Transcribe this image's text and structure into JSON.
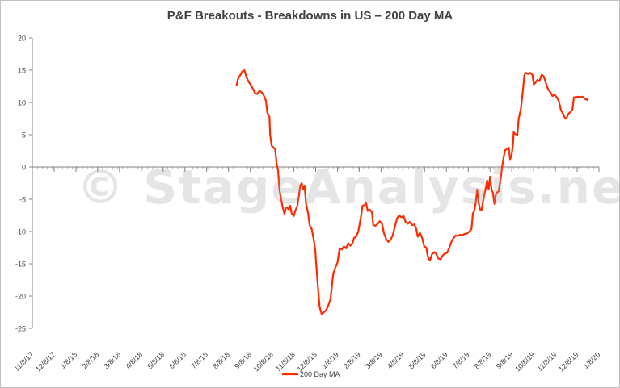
{
  "chart_data": {
    "type": "line",
    "title": "P&F Breakouts - Breakdowns in US – 200 Day MA",
    "watermark": "© StageAnalysis.net",
    "xlabel": "",
    "ylabel": "",
    "ylim": [
      -25,
      20
    ],
    "yticks": [
      20,
      15,
      10,
      5,
      0,
      -5,
      -10,
      -15,
      -20,
      -25
    ],
    "x_range": [
      "2017-11-08",
      "2020-01-08"
    ],
    "x_tick_labels": [
      "11/8/17",
      "12/8/17",
      "1/8/18",
      "2/8/18",
      "3/8/18",
      "4/8/18",
      "5/8/18",
      "6/8/18",
      "7/8/18",
      "8/8/18",
      "9/8/18",
      "10/8/18",
      "11/8/18",
      "12/8/18",
      "1/8/19",
      "2/8/19",
      "3/8/19",
      "4/8/19",
      "5/8/19",
      "6/8/19",
      "7/8/19",
      "8/8/19",
      "9/8/19",
      "10/8/19",
      "11/8/19",
      "12/8/19",
      "1/8/20"
    ],
    "legend_position": "bottom",
    "colors": {
      "series": "#ff2a00",
      "axis": "#808080",
      "text": "#404040"
    },
    "series": [
      {
        "name": "200 Day MA",
        "points": [
          [
            "2018-08-20",
            12.6
          ],
          [
            "2018-08-22",
            13.6
          ],
          [
            "2018-08-25",
            14.2
          ],
          [
            "2018-08-28",
            14.8
          ],
          [
            "2018-08-31",
            15.0
          ],
          [
            "2018-09-03",
            13.9
          ],
          [
            "2018-09-06",
            13.2
          ],
          [
            "2018-09-09",
            12.7
          ],
          [
            "2018-09-12",
            12.1
          ],
          [
            "2018-09-15",
            11.4
          ],
          [
            "2018-09-18",
            11.3
          ],
          [
            "2018-09-21",
            11.8
          ],
          [
            "2018-09-24",
            11.6
          ],
          [
            "2018-09-27",
            11.1
          ],
          [
            "2018-09-30",
            10.3
          ],
          [
            "2018-10-02",
            8.4
          ],
          [
            "2018-10-05",
            7.8
          ],
          [
            "2018-10-06",
            5.0
          ],
          [
            "2018-10-08",
            3.3
          ],
          [
            "2018-10-11",
            3.0
          ],
          [
            "2018-10-13",
            2.7
          ],
          [
            "2018-10-15",
            0.5
          ],
          [
            "2018-10-17",
            -0.5
          ],
          [
            "2018-10-19",
            -3.5
          ],
          [
            "2018-10-21",
            -4.8
          ],
          [
            "2018-10-23",
            -6.0
          ],
          [
            "2018-10-26",
            -7.3
          ],
          [
            "2018-10-28",
            -6.3
          ],
          [
            "2018-10-30",
            -6.3
          ],
          [
            "2018-11-01",
            -6.6
          ],
          [
            "2018-11-03",
            -6.0
          ],
          [
            "2018-11-05",
            -7.2
          ],
          [
            "2018-11-08",
            -7.6
          ],
          [
            "2018-11-10",
            -6.8
          ],
          [
            "2018-11-13",
            -6.0
          ],
          [
            "2018-11-15",
            -4.5
          ],
          [
            "2018-11-17",
            -2.9
          ],
          [
            "2018-11-19",
            -2.5
          ],
          [
            "2018-11-21",
            -3.5
          ],
          [
            "2018-11-23",
            -2.9
          ],
          [
            "2018-11-25",
            -5.6
          ],
          [
            "2018-11-28",
            -7.2
          ],
          [
            "2018-11-30",
            -9.0
          ],
          [
            "2018-12-03",
            -9.6
          ],
          [
            "2018-12-06",
            -11.4
          ],
          [
            "2018-12-08",
            -13.0
          ],
          [
            "2018-12-10",
            -16.2
          ],
          [
            "2018-12-12",
            -19.0
          ],
          [
            "2018-12-14",
            -21.7
          ],
          [
            "2018-12-17",
            -22.8
          ],
          [
            "2018-12-20",
            -22.5
          ],
          [
            "2018-12-23",
            -22.2
          ],
          [
            "2018-12-26",
            -21.5
          ],
          [
            "2018-12-29",
            -20.6
          ],
          [
            "2018-12-31",
            -18.7
          ],
          [
            "2019-01-02",
            -16.6
          ],
          [
            "2019-01-05",
            -15.6
          ],
          [
            "2019-01-08",
            -14.8
          ],
          [
            "2019-01-11",
            -12.6
          ],
          [
            "2019-01-14",
            -12.8
          ],
          [
            "2019-01-17",
            -12.3
          ],
          [
            "2019-01-20",
            -12.6
          ],
          [
            "2019-01-23",
            -11.8
          ],
          [
            "2019-01-26",
            -12.2
          ],
          [
            "2019-01-29",
            -11.8
          ],
          [
            "2019-01-31",
            -11.0
          ],
          [
            "2019-02-03",
            -10.8
          ],
          [
            "2019-02-06",
            -10.0
          ],
          [
            "2019-02-08",
            -8.8
          ],
          [
            "2019-02-10",
            -7.5
          ],
          [
            "2019-02-12",
            -6.0
          ],
          [
            "2019-02-15",
            -5.9
          ],
          [
            "2019-02-17",
            -5.6
          ],
          [
            "2019-02-19",
            -6.8
          ],
          [
            "2019-02-22",
            -6.6
          ],
          [
            "2019-02-25",
            -7.0
          ],
          [
            "2019-02-27",
            -9.0
          ],
          [
            "2019-03-02",
            -9.1
          ],
          [
            "2019-03-05",
            -8.8
          ],
          [
            "2019-03-08",
            -8.4
          ],
          [
            "2019-03-11",
            -8.8
          ],
          [
            "2019-03-14",
            -10.3
          ],
          [
            "2019-03-17",
            -11.2
          ],
          [
            "2019-03-20",
            -11.6
          ],
          [
            "2019-03-23",
            -11.3
          ],
          [
            "2019-03-26",
            -10.6
          ],
          [
            "2019-03-29",
            -9.3
          ],
          [
            "2019-04-01",
            -8.0
          ],
          [
            "2019-04-04",
            -7.5
          ],
          [
            "2019-04-07",
            -7.8
          ],
          [
            "2019-04-10",
            -7.6
          ],
          [
            "2019-04-13",
            -8.5
          ],
          [
            "2019-04-16",
            -8.8
          ],
          [
            "2019-04-19",
            -8.5
          ],
          [
            "2019-04-22",
            -9.0
          ],
          [
            "2019-04-25",
            -8.9
          ],
          [
            "2019-04-28",
            -9.6
          ],
          [
            "2019-04-30",
            -10.8
          ],
          [
            "2019-05-03",
            -10.2
          ],
          [
            "2019-05-06",
            -10.9
          ],
          [
            "2019-05-09",
            -12.3
          ],
          [
            "2019-05-12",
            -12.5
          ],
          [
            "2019-05-14",
            -13.8
          ],
          [
            "2019-05-17",
            -14.5
          ],
          [
            "2019-05-20",
            -13.5
          ],
          [
            "2019-05-23",
            -13.2
          ],
          [
            "2019-05-26",
            -13.5
          ],
          [
            "2019-05-29",
            -14.2
          ],
          [
            "2019-06-01",
            -14.3
          ],
          [
            "2019-06-04",
            -13.7
          ],
          [
            "2019-06-07",
            -13.4
          ],
          [
            "2019-06-10",
            -13.3
          ],
          [
            "2019-06-13",
            -12.5
          ],
          [
            "2019-06-16",
            -11.6
          ],
          [
            "2019-06-19",
            -11.0
          ],
          [
            "2019-06-22",
            -10.6
          ],
          [
            "2019-06-25",
            -10.7
          ],
          [
            "2019-06-28",
            -10.5
          ],
          [
            "2019-07-01",
            -10.6
          ],
          [
            "2019-07-04",
            -10.4
          ],
          [
            "2019-07-08",
            -10.3
          ],
          [
            "2019-07-11",
            -10.0
          ],
          [
            "2019-07-14",
            -9.6
          ],
          [
            "2019-07-16",
            -7.2
          ],
          [
            "2019-07-18",
            -6.8
          ],
          [
            "2019-07-20",
            -5.5
          ],
          [
            "2019-07-22",
            -3.5
          ],
          [
            "2019-07-24",
            -5.5
          ],
          [
            "2019-07-26",
            -6.6
          ],
          [
            "2019-07-28",
            -6.7
          ],
          [
            "2019-07-31",
            -4.8
          ],
          [
            "2019-08-03",
            -3.2
          ],
          [
            "2019-08-05",
            -2.1
          ],
          [
            "2019-08-07",
            -3.5
          ],
          [
            "2019-08-09",
            -1.5
          ],
          [
            "2019-08-11",
            -3.5
          ],
          [
            "2019-08-13",
            -4.0
          ],
          [
            "2019-08-15",
            -5.7
          ],
          [
            "2019-08-17",
            -4.3
          ],
          [
            "2019-08-19",
            -3.9
          ],
          [
            "2019-08-21",
            -3.8
          ],
          [
            "2019-08-24",
            -1.6
          ],
          [
            "2019-08-26",
            0.2
          ],
          [
            "2019-08-28",
            1.5
          ],
          [
            "2019-08-30",
            2.6
          ],
          [
            "2019-09-02",
            2.8
          ],
          [
            "2019-09-04",
            3.0
          ],
          [
            "2019-09-06",
            1.2
          ],
          [
            "2019-09-08",
            1.8
          ],
          [
            "2019-09-10",
            3.6
          ],
          [
            "2019-09-11",
            5.4
          ],
          [
            "2019-09-13",
            5.1
          ],
          [
            "2019-09-16",
            5.0
          ],
          [
            "2019-09-18",
            7.5
          ],
          [
            "2019-09-21",
            9.0
          ],
          [
            "2019-09-23",
            11.0
          ],
          [
            "2019-09-26",
            14.3
          ],
          [
            "2019-09-28",
            14.6
          ],
          [
            "2019-10-01",
            14.4
          ],
          [
            "2019-10-04",
            14.6
          ],
          [
            "2019-10-07",
            14.3
          ],
          [
            "2019-10-09",
            12.8
          ],
          [
            "2019-10-11",
            13.0
          ],
          [
            "2019-10-14",
            13.5
          ],
          [
            "2019-10-17",
            13.3
          ],
          [
            "2019-10-20",
            14.3
          ],
          [
            "2019-10-23",
            14.0
          ],
          [
            "2019-10-26",
            13.0
          ],
          [
            "2019-10-29",
            12.0
          ],
          [
            "2019-11-01",
            11.6
          ],
          [
            "2019-11-04",
            11.0
          ],
          [
            "2019-11-07",
            11.2
          ],
          [
            "2019-11-10",
            10.8
          ],
          [
            "2019-11-13",
            10.2
          ],
          [
            "2019-11-16",
            8.8
          ],
          [
            "2019-11-19",
            8.2
          ],
          [
            "2019-11-22",
            7.5
          ],
          [
            "2019-11-24",
            7.6
          ],
          [
            "2019-11-26",
            8.2
          ],
          [
            "2019-11-29",
            8.5
          ],
          [
            "2019-12-02",
            8.9
          ],
          [
            "2019-12-04",
            10.8
          ],
          [
            "2019-12-07",
            10.8
          ],
          [
            "2019-12-10",
            10.9
          ],
          [
            "2019-12-13",
            10.8
          ],
          [
            "2019-12-16",
            10.9
          ],
          [
            "2019-12-19",
            10.6
          ],
          [
            "2019-12-22",
            10.4
          ],
          [
            "2019-12-24",
            10.6
          ]
        ]
      }
    ]
  }
}
